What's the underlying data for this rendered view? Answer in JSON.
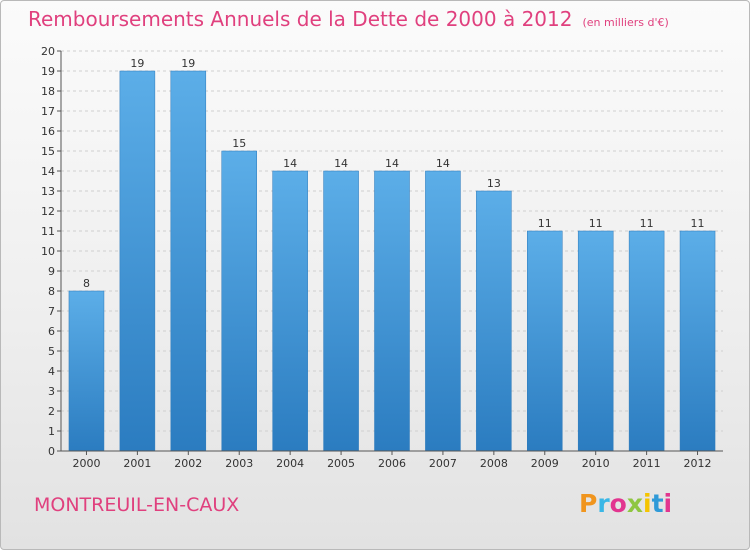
{
  "header": {
    "title": "Remboursements Annuels de la Dette de 2000 à 2012",
    "subtitle": "(en milliers d'€)"
  },
  "footer": {
    "commune": "MONTREUIL-EN-CAUX",
    "brand": "Proxiti",
    "brand_colors": [
      "#f0951e",
      "#3ab7e6",
      "#e2358f",
      "#8fc641",
      "#f5c400",
      "#2f9ad8",
      "#e2358f"
    ]
  },
  "chart_data": {
    "type": "bar",
    "title": "Remboursements Annuels de la Dette de 2000 à 2012",
    "xlabel": "",
    "ylabel": "",
    "categories": [
      "2000",
      "2001",
      "2002",
      "2003",
      "2004",
      "2005",
      "2006",
      "2007",
      "2008",
      "2009",
      "2010",
      "2011",
      "2012"
    ],
    "values": [
      8,
      19,
      19,
      15,
      14,
      14,
      14,
      14,
      13,
      11,
      11,
      11,
      11
    ],
    "ylim": [
      0,
      20
    ],
    "yticks": [
      0,
      1,
      2,
      3,
      4,
      5,
      6,
      7,
      8,
      9,
      10,
      11,
      12,
      13,
      14,
      15,
      16,
      17,
      18,
      19,
      20
    ],
    "grid": "horizontal dashed",
    "data_labels": true,
    "bar_color_top": "#5caee8",
    "bar_color_bottom": "#2b7cc0"
  }
}
